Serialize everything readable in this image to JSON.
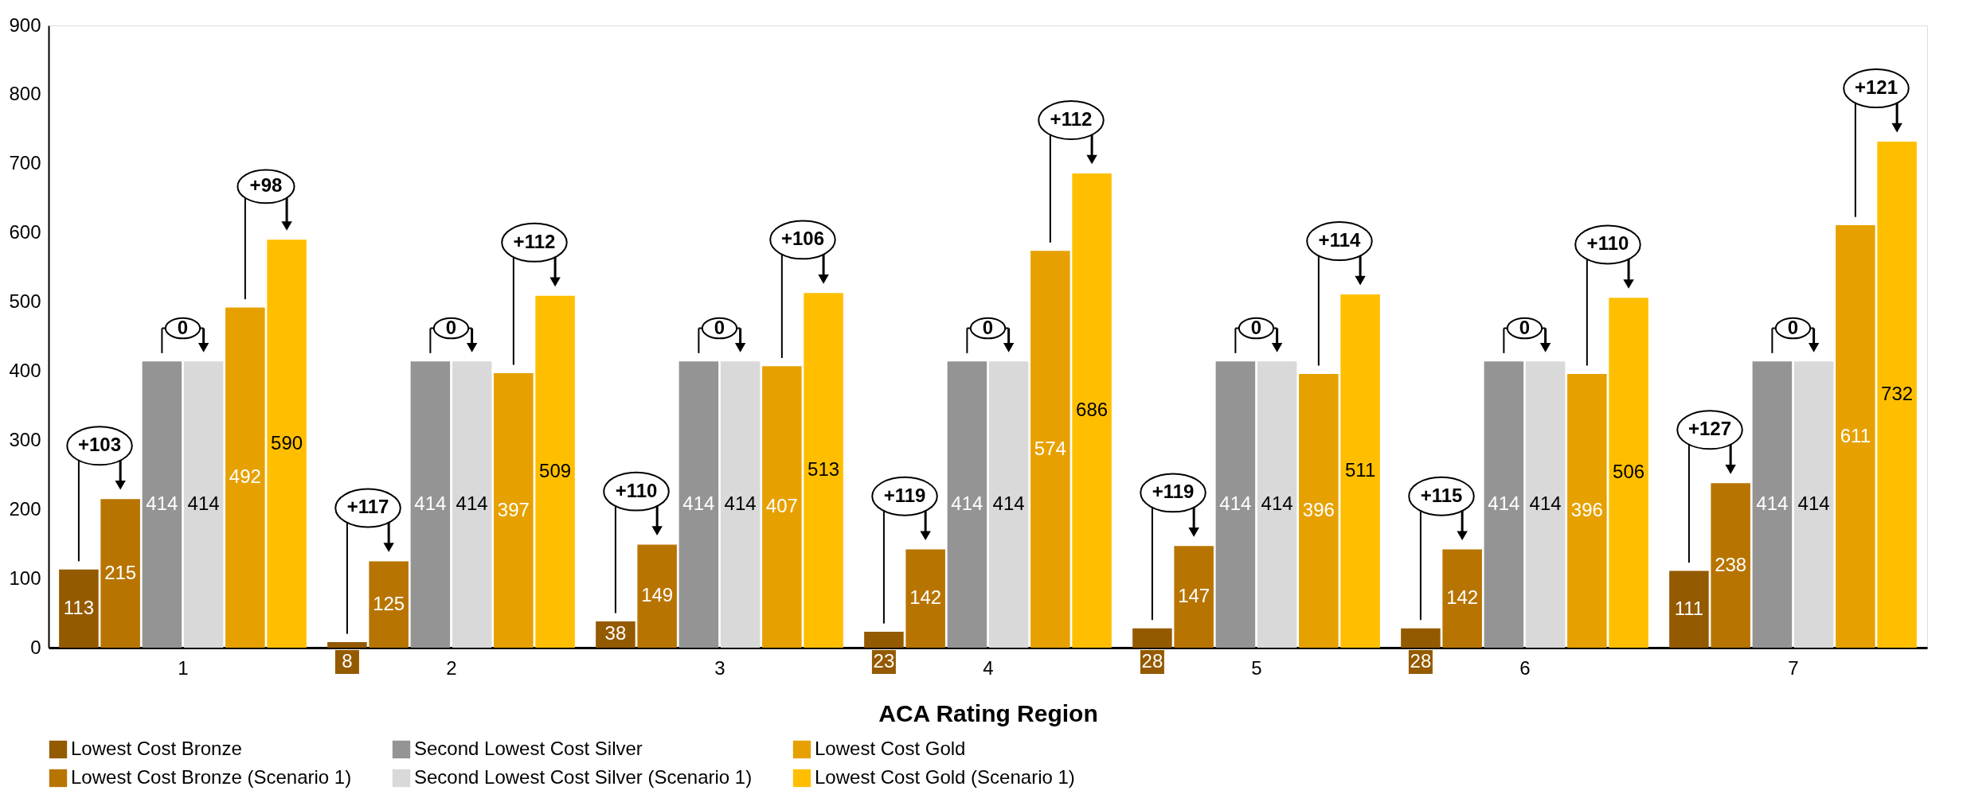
{
  "chart_data": {
    "type": "bar",
    "xlabel": "ACA Rating Region",
    "categories": [
      "1",
      "2",
      "3",
      "4",
      "5",
      "6",
      "7"
    ],
    "series": [
      {
        "name": "Lowest Cost Bronze",
        "color": "#945a00",
        "values": [
          113,
          8,
          38,
          23,
          28,
          28,
          111
        ]
      },
      {
        "name": "Lowest Cost Bronze (Scenario 1)",
        "color": "#b87400",
        "values": [
          215,
          125,
          149,
          142,
          147,
          142,
          238
        ]
      },
      {
        "name": "Second Lowest Cost Silver",
        "color": "#949494",
        "values": [
          414,
          414,
          414,
          414,
          414,
          414,
          414
        ]
      },
      {
        "name": "Second Lowest Cost Silver (Scenario 1)",
        "color": "#d9d9d9",
        "values": [
          414,
          414,
          414,
          414,
          414,
          414,
          414
        ]
      },
      {
        "name": "Lowest Cost Gold",
        "color": "#e6a100",
        "values": [
          492,
          397,
          407,
          574,
          396,
          396,
          611
        ]
      },
      {
        "name": "Lowest Cost Gold (Scenario 1)",
        "color": "#ffbf00",
        "values": [
          590,
          509,
          513,
          686,
          511,
          506,
          732
        ]
      }
    ],
    "ylim": [
      0,
      900
    ],
    "yticks": [
      0,
      100,
      200,
      300,
      400,
      500,
      600,
      700,
      800,
      900
    ],
    "grid": false,
    "legend": "bottom",
    "data_labels": true,
    "annotations": [
      "+103",
      "0",
      "+98",
      "+117",
      "0",
      "+112",
      "+110",
      "0",
      "+106",
      "+119",
      "0",
      "+112",
      "+119",
      "0",
      "+114",
      "+115",
      "0",
      "+110",
      "+127",
      "0",
      "+121"
    ]
  }
}
